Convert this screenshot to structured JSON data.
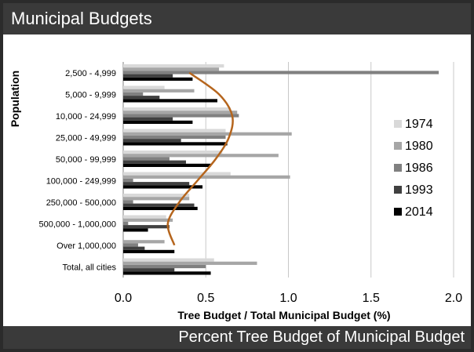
{
  "header": {
    "title": "Municipal Budgets"
  },
  "footer": {
    "caption": "Percent Tree Budget of Municipal Budget"
  },
  "chart_data": {
    "type": "bar",
    "orientation": "horizontal",
    "title": "",
    "xlabel": "Tree Budget / Total Municipal Budget (%)",
    "ylabel": "Population",
    "xlim": [
      0,
      2.0
    ],
    "xticks": [
      "0.0",
      "0.5",
      "1.0",
      "1.5",
      "2.0"
    ],
    "grid": "vertical",
    "legend_position": "right",
    "categories": [
      "2,500 - 4,999",
      "5,000 - 9,999",
      "10,000 - 24,999",
      "25,000 - 49,999",
      "50,000 - 99,999",
      "100,000 - 249,999",
      "250,000 - 500,000",
      "500,000 - 1,000,000",
      "Over 1,000,000",
      "Total, all cities"
    ],
    "series": [
      {
        "name": "1974",
        "color": "#d9d9d9",
        "values": [
          0.61,
          0.25,
          0.65,
          0.62,
          0.6,
          0.65,
          0.4,
          0.26,
          0.0,
          0.55
        ]
      },
      {
        "name": "1980",
        "color": "#a6a6a6",
        "values": [
          0.58,
          0.43,
          0.69,
          1.02,
          0.94,
          1.01,
          0.4,
          0.3,
          0.25,
          0.81
        ]
      },
      {
        "name": "1986",
        "color": "#808080",
        "values": [
          1.91,
          0.12,
          0.7,
          0.62,
          0.28,
          0.06,
          0.06,
          0.03,
          0.09,
          0.5
        ]
      },
      {
        "name": "1993",
        "color": "#404040",
        "values": [
          0.3,
          0.22,
          0.3,
          0.35,
          0.38,
          0.4,
          0.43,
          0.28,
          0.13,
          0.31
        ]
      },
      {
        "name": "2014",
        "color": "#000000",
        "values": [
          0.42,
          0.57,
          0.42,
          0.63,
          0.53,
          0.48,
          0.45,
          0.15,
          0.31,
          0.53
        ]
      }
    ],
    "trendline": {
      "color": "#b5651d",
      "values": [
        0.4,
        0.58,
        0.66,
        0.64,
        0.56,
        0.45,
        0.34,
        0.27,
        0.31
      ]
    }
  }
}
